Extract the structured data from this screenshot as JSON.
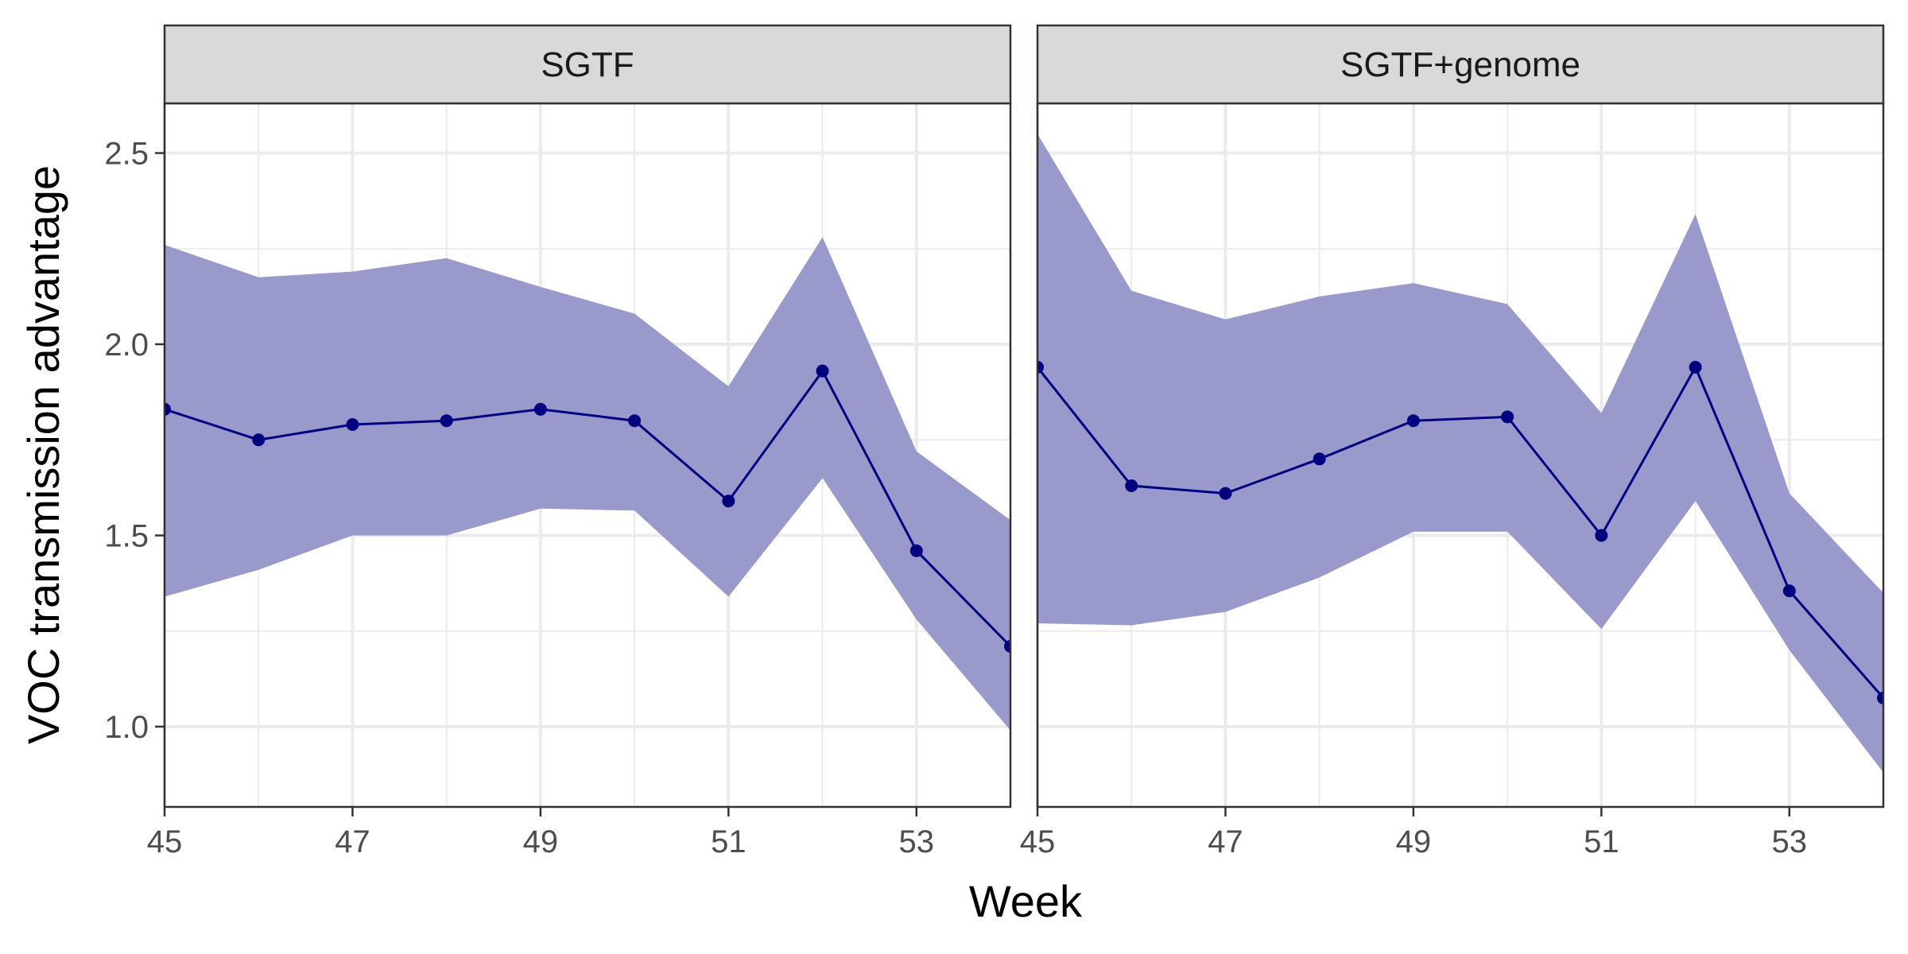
{
  "chart_data": {
    "type": "line",
    "xlabel": "Week",
    "ylabel": "VOC transmission advantage",
    "xlim": [
      45,
      54
    ],
    "ylim": [
      0.79,
      2.63
    ],
    "x_ticks": [
      45,
      47,
      49,
      51,
      53
    ],
    "y_ticks": [
      1.0,
      1.5,
      2.0,
      2.5
    ],
    "y_tick_labels": [
      "1.0",
      "1.5",
      "2.0",
      "2.5"
    ],
    "grid": true,
    "ribbon_color": "#9999cc",
    "line_color": "#000080",
    "strip_fill": "#d9d9d9",
    "panels": [
      {
        "strip_label": "SGTF",
        "x": [
          45,
          46,
          47,
          48,
          49,
          50,
          51,
          52,
          53,
          54
        ],
        "y": [
          1.83,
          1.75,
          1.79,
          1.8,
          1.83,
          1.8,
          1.59,
          1.93,
          1.46,
          1.21
        ],
        "lower": [
          1.34,
          1.41,
          1.5,
          1.5,
          1.57,
          1.565,
          1.34,
          1.65,
          1.28,
          0.99
        ],
        "upper": [
          2.26,
          2.175,
          2.19,
          2.225,
          2.15,
          2.08,
          1.89,
          2.28,
          1.72,
          1.54
        ]
      },
      {
        "strip_label": "SGTF+genome",
        "x": [
          45,
          46,
          47,
          48,
          49,
          50,
          51,
          52,
          53,
          54
        ],
        "y": [
          1.94,
          1.63,
          1.61,
          1.7,
          1.8,
          1.81,
          1.5,
          1.94,
          1.355,
          1.075
        ],
        "lower": [
          1.27,
          1.265,
          1.3,
          1.39,
          1.51,
          1.51,
          1.255,
          1.59,
          1.2,
          0.88
        ],
        "upper": [
          2.55,
          2.14,
          2.065,
          2.125,
          2.16,
          2.105,
          1.82,
          2.34,
          1.61,
          1.35
        ]
      }
    ]
  }
}
